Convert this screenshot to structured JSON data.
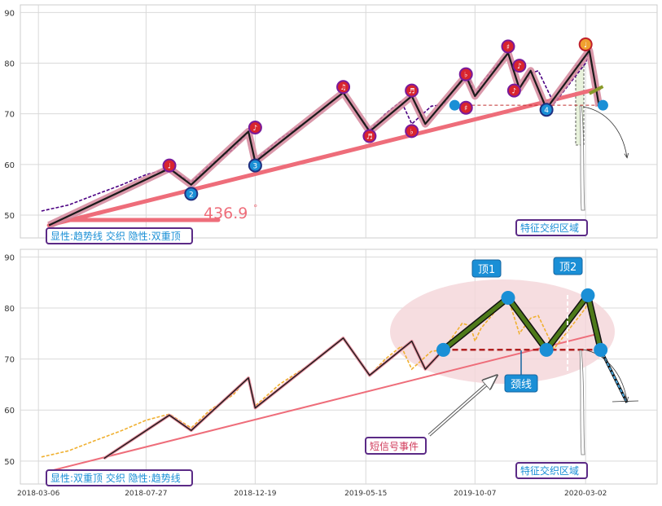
{
  "chart_data": [
    {
      "type": "line",
      "title": "",
      "yticks": [
        50,
        60,
        70,
        80,
        90
      ],
      "ylim": [
        45.5,
        91.5
      ],
      "grid": true,
      "series": [
        {
          "role": "price",
          "color": "#4B0082",
          "style": "dashed",
          "x": [
            "2018-03-10",
            "2018-04-15",
            "2018-05-20",
            "2018-06-25",
            "2018-07-27",
            "2018-08-27",
            "2018-09-25",
            "2018-10-20",
            "2018-11-20",
            "2018-12-10",
            "2018-12-19",
            "2019-01-20",
            "2019-02-20",
            "2019-03-20",
            "2019-04-15",
            "2019-05-05",
            "2019-05-20",
            "2019-06-10",
            "2019-07-01",
            "2019-07-15",
            "2019-08-10",
            "2019-08-26",
            "2019-09-20",
            "2019-10-01",
            "2019-10-07",
            "2019-10-15",
            "2019-11-01",
            "2019-11-20",
            "2019-12-05",
            "2019-12-20",
            "2019-12-30",
            "2020-01-20",
            "2020-02-10",
            "2020-03-02",
            "2020-03-07",
            "2020-03-20"
          ],
          "y": [
            50.8,
            52,
            54,
            56,
            58,
            59.2,
            56.5,
            60,
            63,
            66.5,
            60.8,
            65,
            68,
            71,
            74.2,
            70,
            66.8,
            70,
            72.5,
            68,
            71.5,
            71.8,
            77,
            76.5,
            73.5,
            76,
            79,
            82,
            75,
            78,
            78.5,
            72,
            76,
            80,
            82.5,
            71.5
          ]
        },
        {
          "role": "zigzag",
          "color": "#1a1a1a",
          "x": [
            "2018-03-20",
            "2018-08-27",
            "2018-09-25",
            "2018-12-10",
            "2018-12-19",
            "2019-04-15",
            "2019-05-20",
            "2019-07-15",
            "2019-08-02",
            "2019-09-25",
            "2019-10-07",
            "2019-11-20",
            "2019-12-05",
            "2019-12-20",
            "2020-01-10",
            "2020-03-07",
            "2020-03-20"
          ],
          "y": [
            48,
            59.2,
            56,
            66.5,
            60.5,
            74.2,
            66.5,
            73.5,
            68,
            77.5,
            73.5,
            82,
            75,
            78.5,
            71,
            82.5,
            71.5
          ]
        },
        {
          "role": "trendline",
          "label": "趋势线",
          "color": "#EE6D7A",
          "style": "solid",
          "x": [
            "2018-03-20",
            "2020-03-20"
          ],
          "y": [
            48,
            75
          ]
        }
      ],
      "markers": [
        {
          "kind": "high",
          "x": "2018-08-27",
          "y": 59.8,
          "label": "♩"
        },
        {
          "kind": "low",
          "x": "2018-09-25",
          "y": 54.2,
          "label": "2"
        },
        {
          "kind": "high",
          "x": "2018-12-19",
          "y": 67.3,
          "label": "♪"
        },
        {
          "kind": "low",
          "x": "2018-12-19",
          "y": 59.8,
          "label": "3"
        },
        {
          "kind": "high",
          "x": "2019-04-15",
          "y": 75.3,
          "label": "♫"
        },
        {
          "kind": "high",
          "x": "2019-05-20",
          "y": 65.6,
          "label": "♬"
        },
        {
          "kind": "high",
          "x": "2019-07-15",
          "y": 74.6,
          "label": "♬"
        },
        {
          "kind": "high",
          "x": "2019-07-15",
          "y": 66.6,
          "label": "♭"
        },
        {
          "kind": "high",
          "x": "2019-09-25",
          "y": 77.8,
          "label": "♭"
        },
        {
          "kind": "high",
          "x": "2019-09-25",
          "y": 71.2,
          "label": "♯"
        },
        {
          "kind": "high",
          "x": "2019-11-20",
          "y": 83.3,
          "label": "♯"
        },
        {
          "kind": "high",
          "x": "2019-11-28",
          "y": 74.6,
          "label": "♪"
        },
        {
          "kind": "high",
          "x": "2019-12-05",
          "y": 79.5,
          "label": "♪"
        },
        {
          "kind": "low",
          "x": "2020-01-10",
          "y": 70.8,
          "label": "4"
        },
        {
          "kind": "highO",
          "x": "2020-03-02",
          "y": 83.7,
          "label": "♩"
        },
        {
          "kind": "dot",
          "x": "2019-09-10",
          "y": 71.7,
          "label": ""
        },
        {
          "kind": "dot",
          "x": "2020-03-25",
          "y": 71.7,
          "label": ""
        }
      ],
      "annotations": {
        "angle": "436.9",
        "degree": "°",
        "tag": "显性:趋势线 交织 隐性:双重顶",
        "zone": "特征交织区域"
      }
    },
    {
      "type": "line",
      "title": "",
      "yticks": [
        50,
        60,
        70,
        80,
        90
      ],
      "ylim": [
        45.5,
        91.5
      ],
      "xticks": [
        "2018-03-06",
        "2018-07-27",
        "2018-12-19",
        "2019-05-15",
        "2019-10-07",
        "2020-03-02"
      ],
      "grid": true,
      "series": [
        {
          "role": "price",
          "color": "#F0B030",
          "style": "dashed",
          "x": [
            "2018-03-10",
            "2018-04-15",
            "2018-05-20",
            "2018-06-25",
            "2018-07-27",
            "2018-08-27",
            "2018-09-25",
            "2018-10-20",
            "2018-11-20",
            "2018-12-10",
            "2018-12-19",
            "2019-01-20",
            "2019-02-20",
            "2019-03-20",
            "2019-04-15",
            "2019-05-05",
            "2019-05-20",
            "2019-06-10",
            "2019-07-01",
            "2019-07-15",
            "2019-08-10",
            "2019-08-26",
            "2019-09-20",
            "2019-10-01",
            "2019-10-07",
            "2019-10-15",
            "2019-11-01",
            "2019-11-20",
            "2019-12-05",
            "2019-12-20",
            "2019-12-30",
            "2020-01-20",
            "2020-02-10",
            "2020-03-02",
            "2020-03-07",
            "2020-03-20"
          ],
          "y": [
            50.8,
            52,
            54,
            56,
            58,
            59.2,
            56.5,
            60,
            63,
            66.5,
            60.8,
            65,
            68,
            71,
            74.2,
            70,
            66.8,
            70,
            72.5,
            68,
            71.5,
            71.8,
            77,
            76.5,
            73.5,
            76,
            79,
            82,
            75,
            78,
            78.5,
            72,
            76,
            80,
            82.5,
            71.5
          ]
        },
        {
          "role": "zigzag",
          "color": "#1a1a1a",
          "x": [
            "2018-06-01",
            "2018-08-27",
            "2018-09-25",
            "2018-12-10",
            "2018-12-19",
            "2019-04-15",
            "2019-05-20",
            "2019-07-15",
            "2019-08-02",
            "2019-08-26"
          ],
          "y": [
            50.5,
            59,
            56,
            66.3,
            60.4,
            74.1,
            66.8,
            73.5,
            68,
            71.8
          ]
        },
        {
          "role": "pattern",
          "color": "#4E7A1A",
          "x": [
            "2019-08-26",
            "2019-11-20",
            "2020-01-10",
            "2020-03-05",
            "2020-03-22"
          ],
          "y": [
            71.8,
            82,
            71.8,
            82.5,
            71.8
          ]
        },
        {
          "role": "trendline",
          "label": "趋势线",
          "color": "#EE6D7A",
          "style": "solid",
          "x": [
            "2018-03-20",
            "2020-03-20"
          ],
          "y": [
            48,
            75
          ]
        },
        {
          "role": "neckline",
          "label": "颈线",
          "color": "#B02020",
          "style": "dashed",
          "x": [
            "2019-08-26",
            "2020-03-22"
          ],
          "y": [
            71.8,
            71.8
          ]
        }
      ],
      "markers": [
        {
          "x": "2019-08-26",
          "y": 71.8
        },
        {
          "x": "2019-11-20",
          "y": 82
        },
        {
          "x": "2020-01-10",
          "y": 71.8
        },
        {
          "x": "2020-03-05",
          "y": 82.5
        },
        {
          "x": "2020-03-22",
          "y": 71.8
        }
      ],
      "annotations": {
        "top1": "顶1",
        "top2": "顶2",
        "neck": "颈线",
        "short_signal": "短信号事件",
        "tag": "显性:双重顶 交织 隐性:趋势线",
        "zone": "特征交织区域"
      }
    }
  ]
}
